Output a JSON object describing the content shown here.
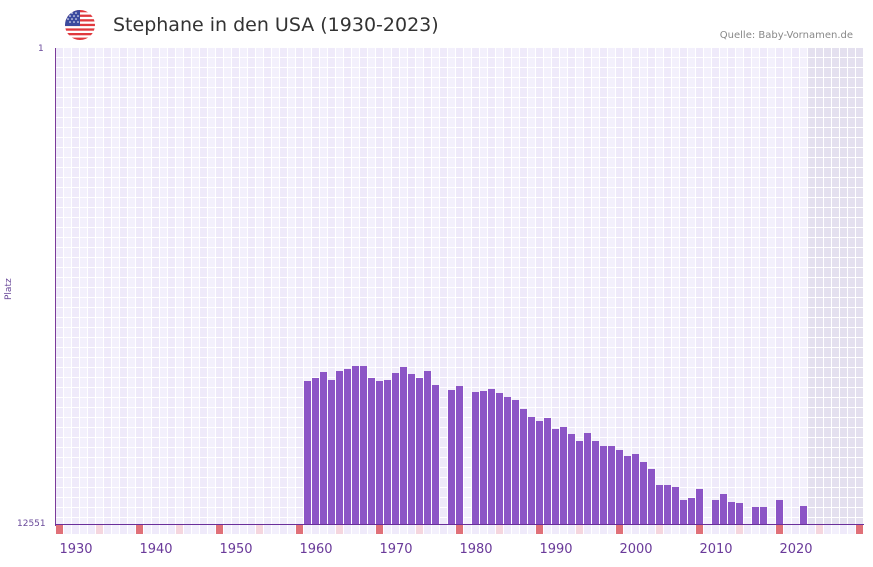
{
  "header": {
    "title": "Stephane in den USA (1930-2023)",
    "source": "Quelle: Baby-Vornamen.de",
    "flag_icon": "us-flag-icon"
  },
  "colors": {
    "bar": "#8c55c6",
    "grid_a": "#efeafa",
    "grid_b": "#f3f0fc",
    "shaded": "#e4e0ef",
    "tick_major": "#e07078",
    "tick_minor": "#f5d6de",
    "axis": "#6a2f9a"
  },
  "chart_data": {
    "type": "bar",
    "title": "Stephane in den USA (1930-2023)",
    "xlabel": "",
    "ylabel": "Platz",
    "y_axis_inverted": true,
    "ylim": [
      1,
      12551
    ],
    "y_ticks": [
      "1",
      "12551"
    ],
    "x_range": [
      1928,
      2028
    ],
    "x_ticks": [
      1930,
      1940,
      1950,
      1960,
      1970,
      1980,
      1990,
      2000,
      2010,
      2020
    ],
    "shaded_region": [
      2022,
      2028
    ],
    "grid": true,
    "legend": null,
    "years": [
      1959,
      1960,
      1961,
      1962,
      1963,
      1964,
      1965,
      1966,
      1967,
      1968,
      1969,
      1970,
      1971,
      1972,
      1973,
      1974,
      1975,
      1977,
      1978,
      1980,
      1981,
      1982,
      1983,
      1984,
      1985,
      1986,
      1987,
      1988,
      1989,
      1990,
      1991,
      1992,
      1993,
      1994,
      1995,
      1996,
      1997,
      1998,
      1999,
      2000,
      2001,
      2002,
      2003,
      2004,
      2005,
      2006,
      2007,
      2008,
      2010,
      2011,
      2012,
      2013,
      2015,
      2016,
      2018,
      2021
    ],
    "ranks": [
      8765,
      8686,
      8528,
      8739,
      8502,
      8449,
      8370,
      8370,
      8686,
      8765,
      8739,
      8555,
      8397,
      8581,
      8686,
      8502,
      8870,
      9002,
      8897,
      9055,
      9028,
      8976,
      9081,
      9186,
      9265,
      9502,
      9712,
      9818,
      9739,
      10028,
      9976,
      10160,
      10344,
      10133,
      10344,
      10476,
      10476,
      10581,
      10739,
      10686,
      10897,
      11081,
      11502,
      11502,
      11555,
      11897,
      11844,
      11607,
      11897,
      11739,
      11949,
      11976,
      12081,
      12081,
      11897,
      12055
    ]
  },
  "axis": {
    "y_top_label": "1",
    "y_bottom_label": "12551",
    "y_title": "Platz",
    "x_labels": [
      "1930",
      "1940",
      "1950",
      "1960",
      "1970",
      "1980",
      "1990",
      "2000",
      "2010",
      "2020"
    ]
  }
}
